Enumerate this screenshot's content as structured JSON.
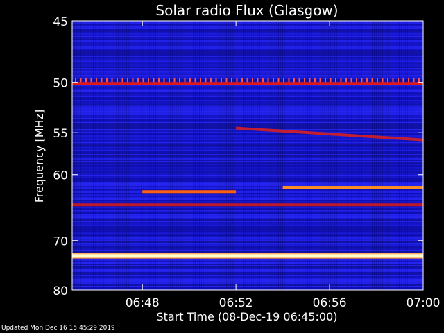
{
  "chart_data": {
    "type": "heatmap",
    "title": "Solar radio Flux (Glasgow)",
    "xlabel": "Start Time (08-Dec-19 06:45:00)",
    "ylabel": "Frequency [MHz]",
    "x_range": [
      "06:45",
      "07:00"
    ],
    "x_ticks": [
      "06:48",
      "06:52",
      "06:56",
      "07:00"
    ],
    "ylim": [
      45,
      80
    ],
    "y_ticks": [
      45,
      50,
      55,
      60,
      70,
      80
    ],
    "y_scale": "inverse",
    "grid": false,
    "background_color": "#1a1adc",
    "features": [
      {
        "label": "persistent emission line",
        "freq_mhz": 50.1,
        "color": "#e01818",
        "start": "06:45",
        "end": "07:00"
      },
      {
        "label": "drifting emission",
        "freq_mhz": [
          54.5,
          55.8
        ],
        "color": "#d62020",
        "start": "06:52",
        "end": "07:00"
      },
      {
        "label": "burst segment",
        "freq_mhz": 62.3,
        "color": "#ff6010",
        "start": "06:48",
        "end": "06:52"
      },
      {
        "label": "burst segment",
        "freq_mhz": 61.7,
        "color": "#ff9020",
        "start": "06:54",
        "end": "07:00"
      },
      {
        "label": "persistent emission line",
        "freq_mhz": 64.2,
        "color": "#c01828",
        "start": "06:45",
        "end": "07:00"
      },
      {
        "label": "strong interference",
        "freq_mhz": 72.8,
        "color": "#ffffc0",
        "start": "06:45",
        "end": "07:00"
      }
    ],
    "colors": {
      "low": "#000050",
      "mid": "#2020ff",
      "high": "#ff2010",
      "max": "#ffffe0"
    }
  },
  "footer": "Updated Mon Dec 16 15:45:29 2019"
}
